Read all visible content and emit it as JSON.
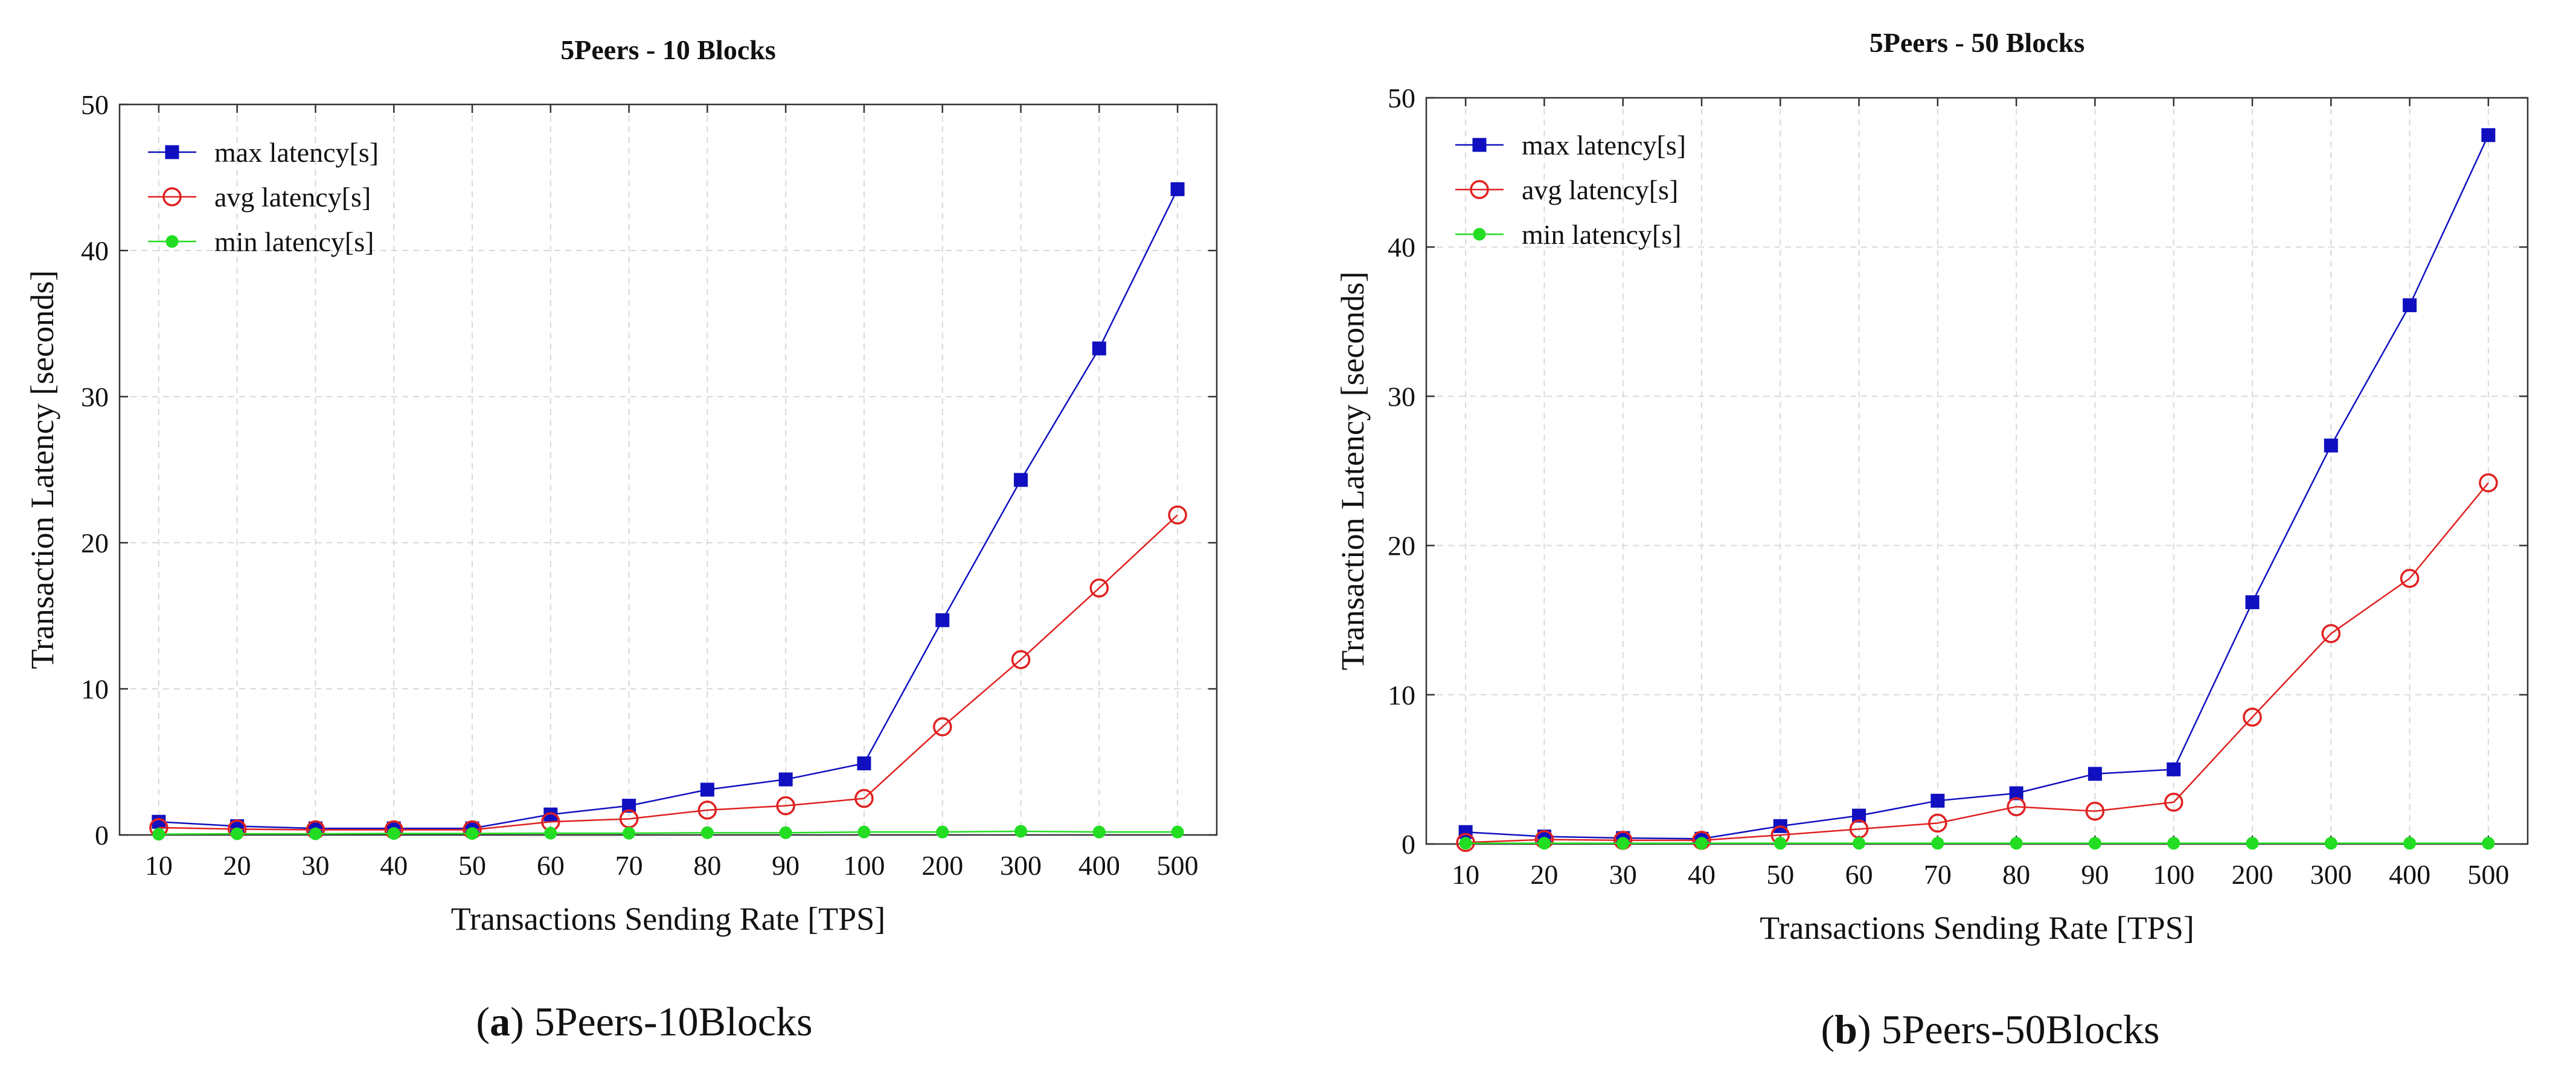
{
  "colors": {
    "max": "#1010c0",
    "avg": "#e02020",
    "min": "#22dd22",
    "axis": "#333333",
    "grid": "#d9d9d9"
  },
  "chart_data": [
    {
      "type": "line",
      "title": "5Peers - 10 Blocks",
      "xlabel": "Transactions Sending Rate [TPS]",
      "ylabel": "Transaction Latency [seconds]",
      "categories": [
        "10",
        "20",
        "30",
        "40",
        "50",
        "60",
        "70",
        "80",
        "90",
        "100",
        "200",
        "300",
        "400",
        "500"
      ],
      "ylim": [
        0,
        50
      ],
      "yticks": [
        "0",
        "10",
        "20",
        "30",
        "40",
        "50"
      ],
      "grid": true,
      "legend_position": "top-left",
      "caption_letter": "a",
      "caption_text": "5Peers-10Blocks",
      "series": [
        {
          "name": "max latency[s]",
          "marker": "square",
          "color_key": "max",
          "values": [
            0.9,
            0.6,
            0.45,
            0.45,
            0.45,
            1.4,
            2.0,
            3.1,
            3.8,
            4.9,
            14.7,
            24.3,
            33.3,
            44.2
          ]
        },
        {
          "name": "avg latency[s]",
          "marker": "circle-open",
          "color_key": "avg",
          "values": [
            0.5,
            0.4,
            0.35,
            0.35,
            0.35,
            0.9,
            1.1,
            1.7,
            2.0,
            2.5,
            7.4,
            12.0,
            16.9,
            21.9
          ]
        },
        {
          "name": "min latency[s]",
          "marker": "circle",
          "color_key": "min",
          "values": [
            0.05,
            0.08,
            0.08,
            0.1,
            0.1,
            0.12,
            0.12,
            0.15,
            0.15,
            0.2,
            0.2,
            0.25,
            0.2,
            0.2
          ]
        }
      ]
    },
    {
      "type": "line",
      "title": "5Peers - 50 Blocks",
      "xlabel": "Transactions Sending Rate [TPS]",
      "ylabel": "Transaction Latency [seconds]",
      "categories": [
        "10",
        "20",
        "30",
        "40",
        "50",
        "60",
        "70",
        "80",
        "90",
        "100",
        "200",
        "300",
        "400",
        "500"
      ],
      "ylim": [
        0,
        50
      ],
      "yticks": [
        "0",
        "10",
        "20",
        "30",
        "40",
        "50"
      ],
      "grid": true,
      "legend_position": "top-left",
      "caption_letter": "b",
      "caption_text": "5Peers-50Blocks",
      "series": [
        {
          "name": "max latency[s]",
          "marker": "square",
          "color_key": "max",
          "values": [
            0.8,
            0.5,
            0.4,
            0.35,
            1.2,
            1.9,
            2.9,
            3.4,
            4.7,
            5.0,
            16.2,
            26.7,
            36.1,
            47.5
          ]
        },
        {
          "name": "avg latency[s]",
          "marker": "circle-open",
          "color_key": "avg",
          "values": [
            0.1,
            0.3,
            0.25,
            0.25,
            0.6,
            1.0,
            1.4,
            2.5,
            2.2,
            2.8,
            8.5,
            14.1,
            17.8,
            24.2
          ]
        },
        {
          "name": "min latency[s]",
          "marker": "circle",
          "color_key": "min",
          "values": [
            0.05,
            0.05,
            0.05,
            0.05,
            0.05,
            0.05,
            0.05,
            0.05,
            0.05,
            0.05,
            0.05,
            0.05,
            0.05,
            0.05
          ]
        }
      ]
    }
  ]
}
